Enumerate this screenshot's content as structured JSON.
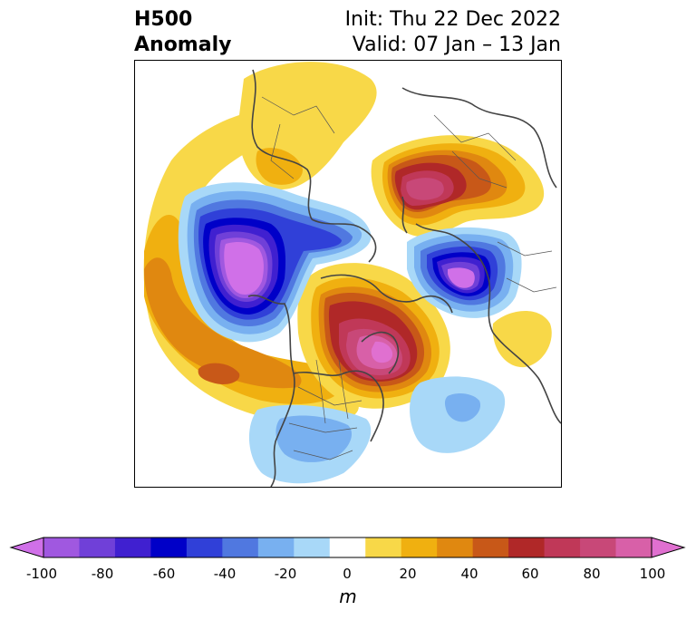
{
  "header": {
    "title_line1": "H500",
    "title_line2": "Anomaly",
    "init_label": "Init: Thu 22 Dec 2022",
    "valid_label": "Valid: 07 Jan – 13 Jan"
  },
  "colorbar": {
    "unit": "m",
    "min": -100,
    "max": 100,
    "ticks": [
      "-100",
      "-80",
      "-60",
      "-40",
      "-20",
      "0",
      "20",
      "40",
      "60",
      "80",
      "100"
    ],
    "colors": [
      "#d070e8",
      "#a058e0",
      "#7040d8",
      "#4020d0",
      "#0000c8",
      "#3040d8",
      "#5078e0",
      "#78b0f0",
      "#a8d8f8",
      "#ffffff",
      "#f8d848",
      "#f0b010",
      "#e08810",
      "#c85818",
      "#b02828",
      "#c03858",
      "#c84878",
      "#d860a8",
      "#e070d0"
    ]
  },
  "map": {
    "projection": "north-polar-stereographic",
    "anomaly_centers": [
      {
        "name": "gulf-of-alaska-trough",
        "sign": "negative",
        "peak": -100
      },
      {
        "name": "greenland-ridge",
        "sign": "positive",
        "peak": 100
      },
      {
        "name": "siberia-ridge",
        "sign": "positive",
        "peak": 60
      },
      {
        "name": "east-asia-trough",
        "sign": "negative",
        "peak": -100
      },
      {
        "name": "arctic-ridge",
        "sign": "positive",
        "peak": 30
      },
      {
        "name": "pacific-ridge",
        "sign": "positive",
        "peak": 50
      },
      {
        "name": "us-trough",
        "sign": "negative",
        "peak": -20
      },
      {
        "name": "atlantic-trough",
        "sign": "negative",
        "peak": -30
      }
    ]
  }
}
